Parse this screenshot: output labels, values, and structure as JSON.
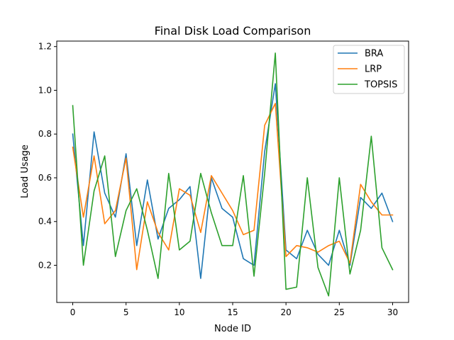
{
  "chart_data": {
    "type": "line",
    "title": "Final Disk Load Comparison",
    "xlabel": "Node ID",
    "ylabel": "Load Usage",
    "xlim": [
      -1.5,
      31.5
    ],
    "ylim": [
      0.03,
      1.225
    ],
    "xticks": [
      0,
      5,
      10,
      15,
      20,
      25,
      30
    ],
    "yticks": [
      0.2,
      0.4,
      0.6,
      0.8,
      1.0,
      1.2
    ],
    "ytick_labels": [
      "0.2",
      "0.4",
      "0.6",
      "0.8",
      "1.0",
      "1.2"
    ],
    "grid": false,
    "legend_position": "top-right",
    "x": [
      0,
      1,
      2,
      3,
      4,
      5,
      6,
      7,
      8,
      9,
      10,
      11,
      12,
      13,
      14,
      15,
      16,
      17,
      18,
      19,
      20,
      21,
      22,
      23,
      24,
      25,
      26,
      27,
      28,
      29,
      30
    ],
    "series": [
      {
        "name": "BRA",
        "color": "#1f77b4",
        "values": [
          0.8,
          0.29,
          0.81,
          0.53,
          0.42,
          0.71,
          0.29,
          0.59,
          0.32,
          0.46,
          0.5,
          0.56,
          0.14,
          0.6,
          0.46,
          0.42,
          0.23,
          0.2,
          0.72,
          1.03,
          0.27,
          0.23,
          0.36,
          0.25,
          0.2,
          0.36,
          0.2,
          0.51,
          0.46,
          0.53,
          0.4
        ]
      },
      {
        "name": "LRP",
        "color": "#ff7f0e",
        "values": [
          0.74,
          0.42,
          0.7,
          0.39,
          0.45,
          0.69,
          0.18,
          0.49,
          0.35,
          0.27,
          0.55,
          0.52,
          0.35,
          0.61,
          0.53,
          0.45,
          0.34,
          0.36,
          0.84,
          0.94,
          0.24,
          0.29,
          0.28,
          0.26,
          0.29,
          0.31,
          0.21,
          0.57,
          0.49,
          0.43,
          0.43
        ]
      },
      {
        "name": "TOPSIS",
        "color": "#2ca02c",
        "values": [
          0.93,
          0.2,
          0.54,
          0.7,
          0.24,
          0.45,
          0.55,
          0.36,
          0.14,
          0.62,
          0.27,
          0.31,
          0.62,
          0.44,
          0.29,
          0.29,
          0.61,
          0.15,
          0.62,
          1.17,
          0.09,
          0.1,
          0.6,
          0.19,
          0.06,
          0.6,
          0.16,
          0.36,
          0.79,
          0.28,
          0.18
        ]
      }
    ]
  }
}
